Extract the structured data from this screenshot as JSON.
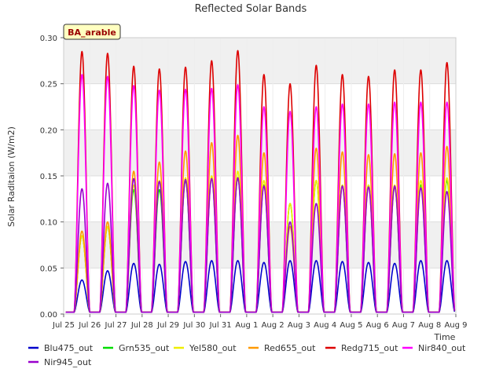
{
  "chart_data": {
    "type": "line",
    "title": "Reflected Solar Bands",
    "xlabel": "Time",
    "ylabel": "Solar Raditaion (W/m2)",
    "annotation": "BA_arable",
    "ylim": [
      0,
      0.3
    ],
    "yticks": [
      "0.00",
      "0.05",
      "0.10",
      "0.15",
      "0.20",
      "0.25",
      "0.30"
    ],
    "xticks": [
      "Jul 25",
      "Jul 26",
      "Jul 27",
      "Jul 28",
      "Jul 29",
      "Jul 30",
      "Jul 31",
      "Aug 1",
      "Aug 2",
      "Aug 3",
      "Aug 4",
      "Aug 5",
      "Aug 6",
      "Aug 7",
      "Aug 8",
      "Aug 9"
    ],
    "xlim_days": [
      0,
      15
    ],
    "grid": true,
    "legend_position": "bottom",
    "day_centers": [
      0.7,
      1.68,
      2.68,
      3.66,
      4.66,
      5.66,
      6.66,
      7.66,
      8.66,
      9.66,
      10.66,
      11.66,
      12.66,
      13.66,
      14.66
    ],
    "series": [
      {
        "name": "Blu475_out",
        "color": "#0000cc",
        "peaks": [
          0.037,
          0.047,
          0.055,
          0.054,
          0.057,
          0.058,
          0.058,
          0.056,
          0.058,
          0.058,
          0.057,
          0.056,
          0.055,
          0.058,
          0.058
        ]
      },
      {
        "name": "Grn535_out",
        "color": "#00dd00",
        "peaks": [
          0.085,
          0.095,
          0.135,
          0.135,
          0.145,
          0.148,
          0.148,
          0.14,
          0.12,
          0.145,
          0.14,
          0.14,
          0.138,
          0.14,
          0.145
        ]
      },
      {
        "name": "Yel580_out",
        "color": "#eeee00",
        "peaks": [
          0.085,
          0.095,
          0.14,
          0.145,
          0.148,
          0.15,
          0.155,
          0.145,
          0.12,
          0.145,
          0.14,
          0.14,
          0.14,
          0.145,
          0.148
        ]
      },
      {
        "name": "Red655_out",
        "color": "#ff9900",
        "peaks": [
          0.09,
          0.1,
          0.155,
          0.165,
          0.177,
          0.186,
          0.194,
          0.175,
          0.095,
          0.18,
          0.176,
          0.173,
          0.174,
          0.175,
          0.182
        ]
      },
      {
        "name": "Redg715_out",
        "color": "#dd0000",
        "peaks": [
          0.285,
          0.283,
          0.269,
          0.266,
          0.268,
          0.275,
          0.286,
          0.26,
          0.25,
          0.27,
          0.26,
          0.258,
          0.265,
          0.265,
          0.273
        ]
      },
      {
        "name": "Nir840_out",
        "color": "#ff00ff",
        "peaks": [
          0.26,
          0.258,
          0.248,
          0.243,
          0.244,
          0.245,
          0.249,
          0.225,
          0.22,
          0.225,
          0.228,
          0.228,
          0.23,
          0.23,
          0.23
        ]
      },
      {
        "name": "Nir945_out",
        "color": "#9900cc",
        "peaks": [
          0.136,
          0.142,
          0.147,
          0.144,
          0.146,
          0.147,
          0.148,
          0.139,
          0.1,
          0.12,
          0.139,
          0.138,
          0.139,
          0.137,
          0.133
        ]
      }
    ]
  }
}
